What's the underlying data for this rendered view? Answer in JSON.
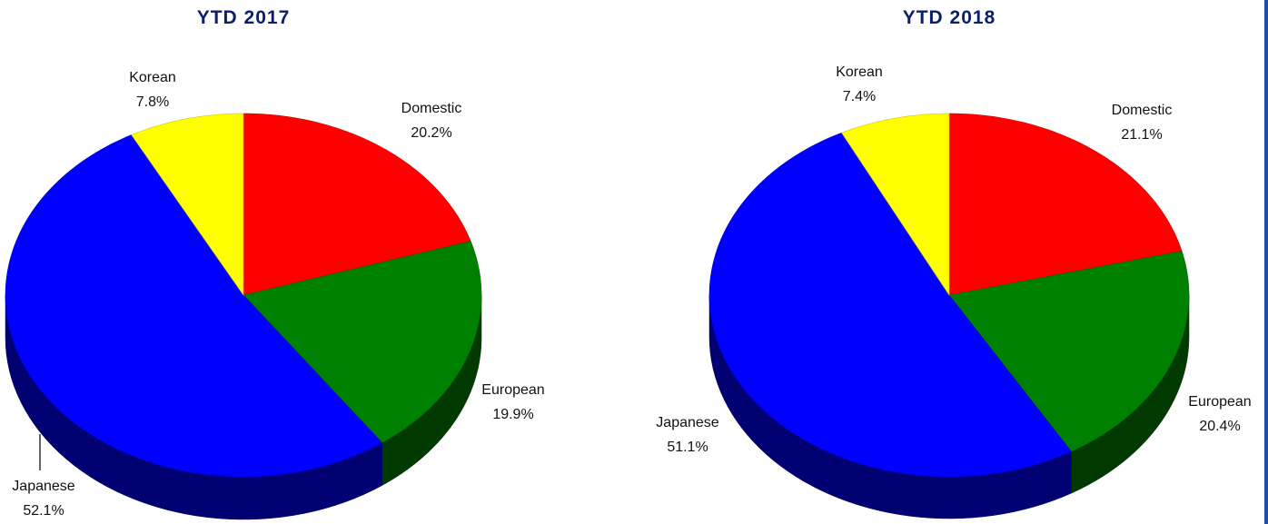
{
  "chart_data": [
    {
      "type": "pie",
      "title": "YTD 2017",
      "categories": [
        "Domestic",
        "European",
        "Japanese",
        "Korean"
      ],
      "values": [
        20.2,
        19.9,
        52.1,
        7.8
      ],
      "value_labels": [
        "20.2%",
        "19.9%",
        "52.1%",
        "7.8%"
      ],
      "colors": [
        "#ff0000",
        "#008000",
        "#0000ff",
        "#ffff00"
      ],
      "style": "3d-tilted"
    },
    {
      "type": "pie",
      "title": "YTD 2018",
      "categories": [
        "Domestic",
        "European",
        "Japanese",
        "Korean"
      ],
      "values": [
        21.1,
        20.4,
        51.1,
        7.4
      ],
      "value_labels": [
        "21.1%",
        "20.4%",
        "51.1%",
        "7.4%"
      ],
      "colors": [
        "#ff0000",
        "#008000",
        "#0000ff",
        "#ffff00"
      ],
      "style": "3d-tilted"
    }
  ]
}
